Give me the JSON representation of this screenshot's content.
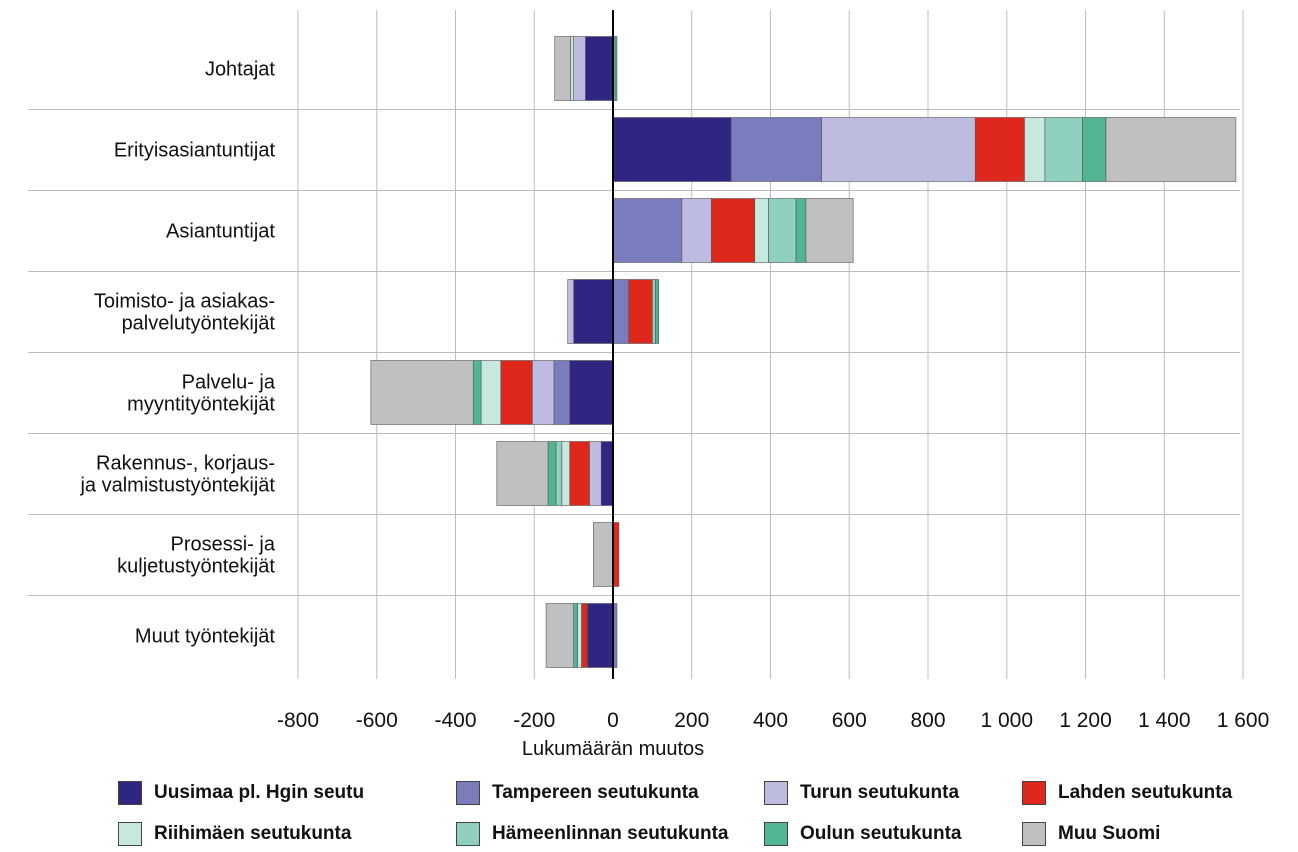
{
  "chart_data": {
    "type": "bar",
    "orientation": "horizontal",
    "stacked": true,
    "categories": [
      [
        "Johtajat"
      ],
      [
        "Erityisasiantuntijat"
      ],
      [
        "Asiantuntijat"
      ],
      [
        "Toimisto- ja asiakas-",
        "palvelutyöntekijät"
      ],
      [
        "Palvelu- ja",
        "myyntityöntekijät"
      ],
      [
        "Rakennus-, korjaus-",
        "ja valmistustyöntekijät"
      ],
      [
        "Prosessi- ja",
        "kuljetustyöntekijät"
      ],
      [
        "Muut työntekijät"
      ]
    ],
    "series": [
      {
        "name": "Uusimaa pl. Hgin seutu",
        "color": "#2e2680",
        "values": [
          -70,
          300,
          0,
          -100,
          -110,
          -30,
          0,
          -65
        ]
      },
      {
        "name": "Tampereen seutukunta",
        "color": "#7b7cbd",
        "values": [
          0,
          230,
          175,
          40,
          -40,
          0,
          0,
          10
        ]
      },
      {
        "name": "Turun seutukunta",
        "color": "#bdbbe0",
        "values": [
          -30,
          390,
          75,
          -15,
          -55,
          -30,
          0,
          0
        ]
      },
      {
        "name": "Lahden seutukunta",
        "color": "#de281c",
        "values": [
          0,
          125,
          110,
          60,
          -80,
          -50,
          15,
          -15
        ]
      },
      {
        "name": "Riihimäen seutukunta",
        "color": "#c7e8de",
        "values": [
          -8,
          52,
          35,
          0,
          -50,
          -20,
          0,
          -10
        ]
      },
      {
        "name": "Hämeenlinnan seutukunta",
        "color": "#8fcfbf",
        "values": [
          5,
          95,
          70,
          8,
          0,
          -15,
          0,
          0
        ]
      },
      {
        "name": "Oulun seutukunta",
        "color": "#52b591",
        "values": [
          5,
          60,
          25,
          8,
          -20,
          -20,
          0,
          -10
        ]
      },
      {
        "name": "Muu Suomi",
        "color": "#c0c0c2",
        "values": [
          -40,
          330,
          120,
          0,
          -260,
          -130,
          -50,
          -70
        ]
      }
    ],
    "x_ticks": [
      "-800",
      "-600",
      "-400",
      "-200",
      "0",
      "200",
      "400",
      "600",
      "800",
      "1 000",
      "1 200",
      "1 400",
      "1 600"
    ],
    "xlim": [
      -800,
      1600
    ],
    "xlabel": "Lukumäärän muutos",
    "grid": true,
    "legend_position": "bottom"
  }
}
